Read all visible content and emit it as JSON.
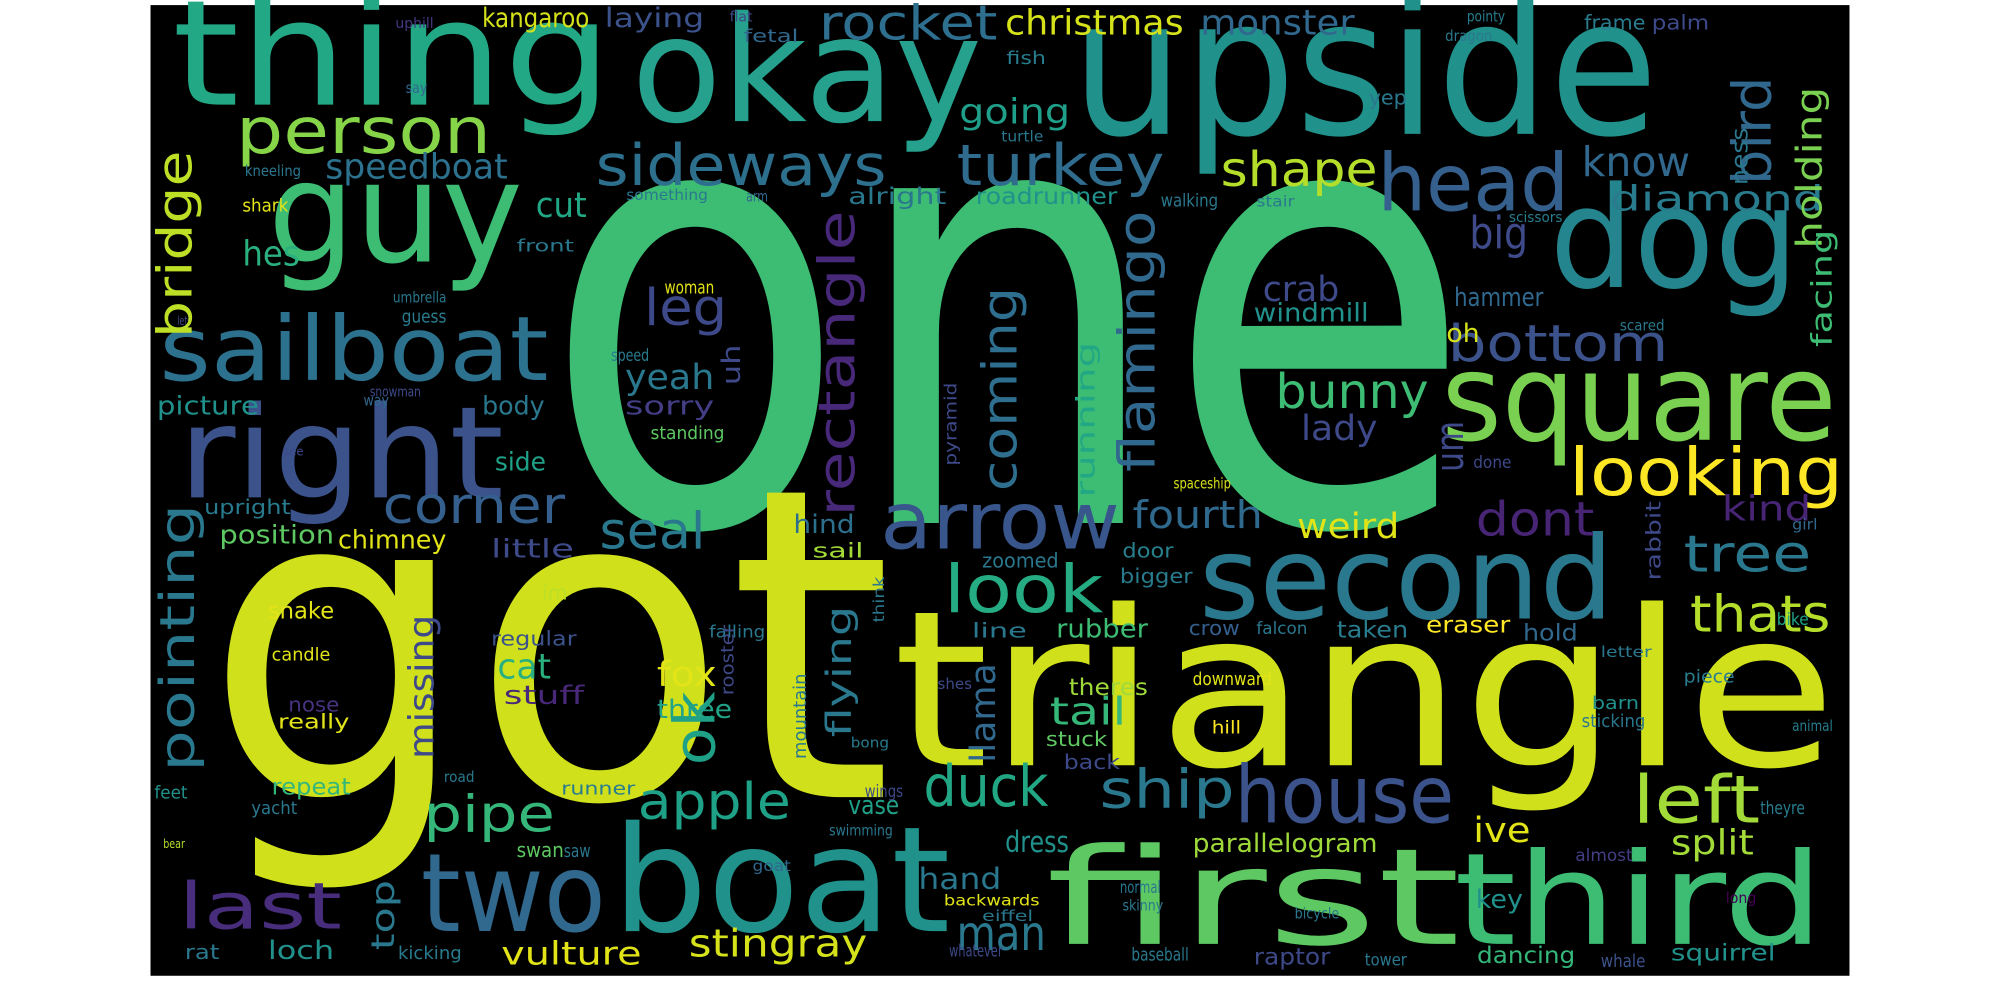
{
  "words": [
    "one",
    "got",
    "triangle",
    "upside",
    "okay",
    "thing",
    "guy",
    "dog",
    "square",
    "right",
    "sailboat",
    "second",
    "boat",
    "first",
    "third",
    "two",
    "house",
    "arrow",
    "head",
    "person",
    "sideways",
    "turkey",
    "looking",
    "look",
    "left",
    "last",
    "duck",
    "ship",
    "apple",
    "pipe",
    "man",
    "stingray",
    "bottom",
    "bunny",
    "shape",
    "seal",
    "corner",
    "rocket",
    "christmas",
    "monster",
    "kangaroo",
    "laying",
    "going",
    "tree",
    "thats",
    "kind",
    "dont",
    "weird",
    "fourth",
    "know",
    "diamond",
    "big",
    "leg",
    "yeah",
    "sorry",
    "crab",
    "windmill",
    "hammer",
    "oh",
    "lady",
    "speedboat",
    "cut",
    "hes",
    "picture",
    "body",
    "side",
    "position",
    "chimney",
    "little",
    "upright",
    "hind",
    "sail",
    "zoomed",
    "bigger",
    "door",
    "im",
    "snake",
    "regular",
    "candle",
    "cat",
    "stuff",
    "fox",
    "three",
    "nose",
    "really",
    "tail",
    "theres",
    "downward",
    "stuck",
    "back",
    "hill",
    "rubber",
    "line",
    "crow",
    "falcon",
    "taken",
    "eraser",
    "hold",
    "letter",
    "bike",
    "girl",
    "shes",
    "barn",
    "sticking",
    "animal",
    "piece",
    "split",
    "ive",
    "parallelogram",
    "dress",
    "vase",
    "swan",
    "saw",
    "hand",
    "goat",
    "swimming",
    "normal",
    "almost",
    "theyre",
    "long",
    "key",
    "backwards",
    "eiffel",
    "skinny",
    "bicycle",
    "whatever",
    "baseball",
    "raptor",
    "tower",
    "dancing",
    "whale",
    "squirrel",
    "vulture",
    "loch",
    "kicking",
    "rat",
    "bear",
    "yacht",
    "repeat",
    "feet",
    "road",
    "runner",
    "umbrella",
    "guess",
    "lets",
    "way",
    "snowman",
    "see",
    "standing",
    "woman",
    "speed",
    "something",
    "arm",
    "alright",
    "roadrunner",
    "walking",
    "stair",
    "scissors",
    "front",
    "shark",
    "kneeling",
    "say",
    "uphill",
    "flat",
    "fetal",
    "fish",
    "turtle",
    "pointy",
    "dragon",
    "frame",
    "palm",
    "yep",
    "scared",
    "done",
    "spaceship",
    "bong",
    "wings",
    "falling",
    "bridge",
    "pointing",
    "rectangle",
    "flamingo",
    "coming",
    "running",
    "llama",
    "flying",
    "missing",
    "ok",
    "top",
    "mountain",
    "rooster",
    "think",
    "uh",
    "um",
    "pyramid",
    "bird",
    "holding",
    "facing",
    "ness",
    "rabbit"
  ]
}
